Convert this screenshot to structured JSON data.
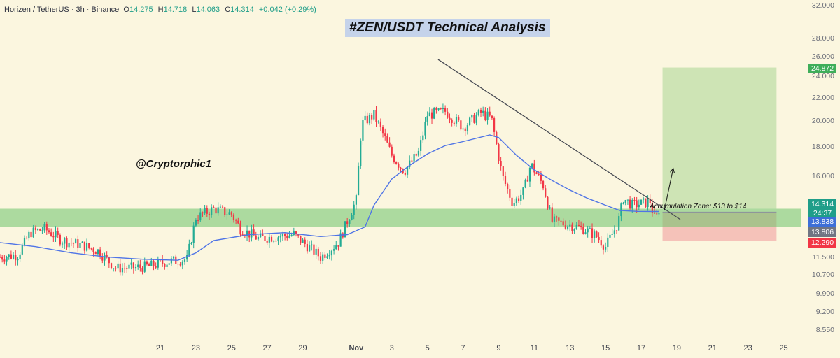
{
  "header": {
    "symbol": "Horizen / TetherUS · 3h · Binance",
    "open_label": "O",
    "open": "14.275",
    "high_label": "H",
    "high": "14.718",
    "low_label": "L",
    "low": "14.063",
    "close_label": "C",
    "close": "14.314",
    "change": "+0.042 (+0.29%)"
  },
  "title": "#ZEN/USDT Technical Analysis",
  "watermark": "@Cryptorphic1",
  "zone_label": "Accumulation Zone: $13 to $14",
  "price_tags": {
    "target": "24.872",
    "last_price": "14.314",
    "countdown": "24:37",
    "ma_value": "13.838",
    "support": "13.806",
    "stop": "12.290"
  },
  "colors": {
    "background": "#fbf6df",
    "up_candle": "#22ab94",
    "down_candle": "#f23645",
    "ma_line": "#4f74e6",
    "zone_green": "#6cc36a",
    "target_box": "#c9e2b0",
    "stop_box": "#f4bcb5",
    "title_bg": "#c5d3ea"
  },
  "chart_data": {
    "type": "candlestick",
    "title": "#ZEN/USDT Technical Analysis",
    "y_scale": "log",
    "ylim": [
      8.4,
      32.0
    ],
    "y_ticks": [
      "32.000",
      "28.000",
      "26.000",
      "24.000",
      "22.000",
      "20.000",
      "18.000",
      "16.000",
      "14.000",
      "11.500",
      "10.700",
      "9.900",
      "9.200",
      "8.550"
    ],
    "x_ticks": [
      "21",
      "23",
      "25",
      "27",
      "29",
      "Nov",
      "3",
      "5",
      "7",
      "9",
      "11",
      "13",
      "15",
      "17",
      "19",
      "21",
      "23",
      "25"
    ],
    "x_domain_days": [
      -20,
      25
    ],
    "price_path": [
      {
        "day": -20.0,
        "price": 11.5
      },
      {
        "day": -19.0,
        "price": 11.6
      },
      {
        "day": -18.3,
        "price": 12.7
      },
      {
        "day": -17.5,
        "price": 12.9
      },
      {
        "day": -16.5,
        "price": 12.3
      },
      {
        "day": -15.5,
        "price": 12.1
      },
      {
        "day": -14.5,
        "price": 11.8
      },
      {
        "day": -13.5,
        "price": 11.0
      },
      {
        "day": -12.5,
        "price": 11.0
      },
      {
        "day": -11.5,
        "price": 11.1
      },
      {
        "day": -10.5,
        "price": 11.3
      },
      {
        "day": -9.5,
        "price": 11.4
      },
      {
        "day": -9.0,
        "price": 13.5
      },
      {
        "day": -8.0,
        "price": 14.0
      },
      {
        "day": -7.0,
        "price": 13.7
      },
      {
        "day": -6.5,
        "price": 12.9
      },
      {
        "day": -5.5,
        "price": 12.4
      },
      {
        "day": -4.5,
        "price": 12.5
      },
      {
        "day": -3.5,
        "price": 12.6
      },
      {
        "day": -2.0,
        "price": 11.5
      },
      {
        "day": -1.0,
        "price": 12.2
      },
      {
        "day": 0.0,
        "price": 14.5
      },
      {
        "day": 0.3,
        "price": 19.8
      },
      {
        "day": 1.0,
        "price": 20.5
      },
      {
        "day": 1.5,
        "price": 19.0
      },
      {
        "day": 2.0,
        "price": 17.4
      },
      {
        "day": 2.7,
        "price": 16.3
      },
      {
        "day": 3.5,
        "price": 17.6
      },
      {
        "day": 4.0,
        "price": 20.5
      },
      {
        "day": 5.0,
        "price": 20.8
      },
      {
        "day": 6.0,
        "price": 19.5
      },
      {
        "day": 7.0,
        "price": 20.7
      },
      {
        "day": 7.6,
        "price": 20.2
      },
      {
        "day": 8.2,
        "price": 16.0
      },
      {
        "day": 8.8,
        "price": 14.3
      },
      {
        "day": 9.4,
        "price": 15.0
      },
      {
        "day": 9.8,
        "price": 16.8
      },
      {
        "day": 10.5,
        "price": 15.4
      },
      {
        "day": 11.0,
        "price": 13.3
      },
      {
        "day": 12.0,
        "price": 13.1
      },
      {
        "day": 12.8,
        "price": 12.9
      },
      {
        "day": 13.5,
        "price": 12.5
      },
      {
        "day": 14.0,
        "price": 12.0
      },
      {
        "day": 14.7,
        "price": 13.2
      },
      {
        "day": 15.0,
        "price": 14.6
      },
      {
        "day": 15.5,
        "price": 14.2
      },
      {
        "day": 16.0,
        "price": 14.3
      },
      {
        "day": 16.5,
        "price": 14.4
      },
      {
        "day": 16.8,
        "price": 13.3
      },
      {
        "day": 17.1,
        "price": 14.3
      }
    ],
    "moving_average": [
      {
        "day": -20.0,
        "price": 12.2
      },
      {
        "day": -18.0,
        "price": 12.0
      },
      {
        "day": -16.0,
        "price": 11.7
      },
      {
        "day": -14.0,
        "price": 11.5
      },
      {
        "day": -12.0,
        "price": 11.4
      },
      {
        "day": -10.0,
        "price": 11.35
      },
      {
        "day": -9.0,
        "price": 11.7
      },
      {
        "day": -8.0,
        "price": 12.3
      },
      {
        "day": -6.0,
        "price": 12.6
      },
      {
        "day": -4.0,
        "price": 12.7
      },
      {
        "day": -2.0,
        "price": 12.5
      },
      {
        "day": -0.5,
        "price": 12.6
      },
      {
        "day": 0.5,
        "price": 13.0
      },
      {
        "day": 1.0,
        "price": 14.2
      },
      {
        "day": 2.0,
        "price": 15.8
      },
      {
        "day": 3.0,
        "price": 16.7
      },
      {
        "day": 4.0,
        "price": 17.5
      },
      {
        "day": 5.0,
        "price": 18.1
      },
      {
        "day": 6.0,
        "price": 18.4
      },
      {
        "day": 7.5,
        "price": 18.9
      },
      {
        "day": 8.0,
        "price": 18.7
      },
      {
        "day": 9.0,
        "price": 17.4
      },
      {
        "day": 10.0,
        "price": 16.4
      },
      {
        "day": 11.0,
        "price": 15.7
      },
      {
        "day": 12.0,
        "price": 15.1
      },
      {
        "day": 13.0,
        "price": 14.6
      },
      {
        "day": 14.0,
        "price": 14.2
      },
      {
        "day": 14.8,
        "price": 13.9
      },
      {
        "day": 15.8,
        "price": 13.85
      },
      {
        "day": 17.0,
        "price": 13.84
      }
    ],
    "trendline": [
      {
        "day": 4.6,
        "price": 25.7
      },
      {
        "day": 18.2,
        "price": 13.4
      }
    ],
    "accumulation_zone": {
      "from": 13.0,
      "to": 14.0
    },
    "target_box": {
      "day_start": 17.2,
      "day_end": 23.6,
      "price_low": 14.0,
      "price_high": 24.872
    },
    "stop_box": {
      "day_start": 17.2,
      "day_end": 23.6,
      "price_low": 12.29,
      "price_high": 13.806
    },
    "projection_arrow": [
      {
        "day": 17.3,
        "price": 13.9
      },
      {
        "day": 17.8,
        "price": 16.5
      }
    ],
    "legend": "none",
    "grid": false
  }
}
